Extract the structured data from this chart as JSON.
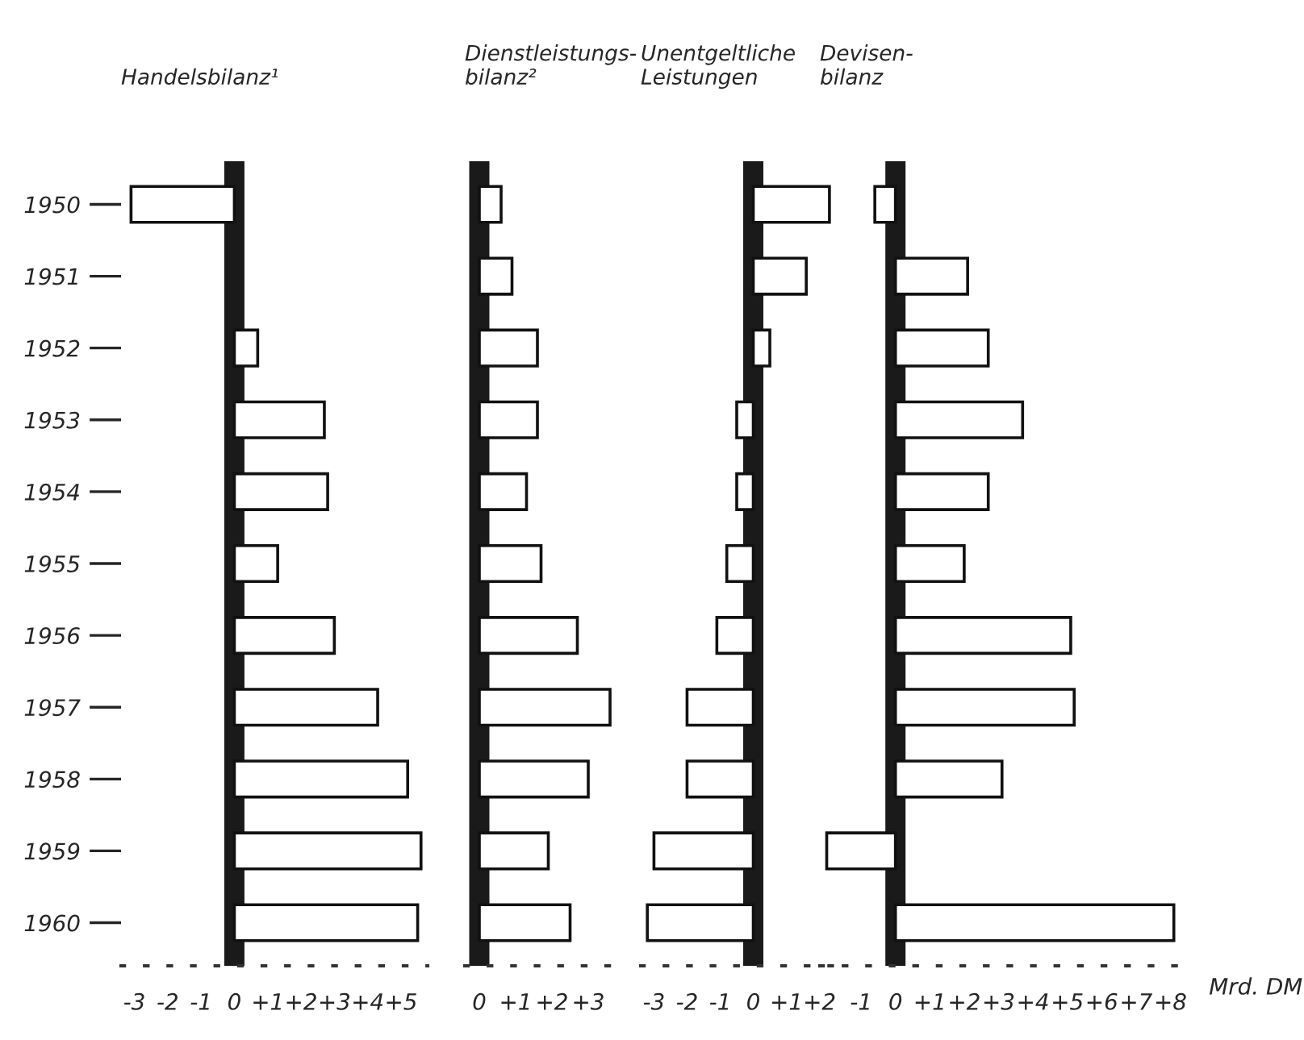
{
  "chart_data": [
    {
      "type": "bar",
      "orientation": "horizontal",
      "title": "Handelsbilanz¹",
      "categories": [
        "1950",
        "1951",
        "1952",
        "1953",
        "1954",
        "1955",
        "1956",
        "1957",
        "1958",
        "1959",
        "1960"
      ],
      "values": [
        -3.1,
        null,
        0.7,
        2.7,
        2.8,
        1.3,
        3.0,
        4.3,
        5.2,
        5.6,
        5.5
      ],
      "color": "#ffffff",
      "xlim": [
        -3.4,
        5.8
      ],
      "xticks": [
        {
          "value": -3,
          "label": "-3"
        },
        {
          "value": -2,
          "label": "-2"
        },
        {
          "value": -1,
          "label": "-1"
        },
        0,
        {
          "value": 1,
          "label": "+1"
        },
        {
          "value": 2,
          "label": "+2"
        },
        {
          "value": 3,
          "label": "+3"
        },
        {
          "value": 4,
          "label": "+4"
        },
        {
          "value": 5,
          "label": "+5"
        }
      ],
      "ref_lines": [
        {
          "axis": "x",
          "value": 0,
          "color": "#1a1a1a"
        }
      ],
      "grid": false,
      "legend": false
    },
    {
      "type": "bar",
      "orientation": "horizontal",
      "title": "Dienstleistungs-\nbilanz²",
      "categories": [
        "1950",
        "1951",
        "1952",
        "1953",
        "1954",
        "1955",
        "1956",
        "1957",
        "1958",
        "1959",
        "1960"
      ],
      "values": [
        0.6,
        0.9,
        1.6,
        1.6,
        1.3,
        1.7,
        2.7,
        3.6,
        3.0,
        1.9,
        2.5
      ],
      "color": "#ffffff",
      "xlim": [
        -0.4,
        4.0
      ],
      "xticks": [
        0,
        {
          "value": 1,
          "label": "+1"
        },
        {
          "value": 2,
          "label": "+2"
        },
        {
          "value": 3,
          "label": "+3"
        }
      ],
      "ref_lines": [
        {
          "axis": "x",
          "value": 0,
          "color": "#1a1a1a"
        }
      ],
      "tick_labels": "x",
      "grid": false,
      "legend": false
    },
    {
      "type": "bar",
      "orientation": "horizontal",
      "title": "Unentgeltliche\nLeistungen",
      "categories": [
        "1950",
        "1951",
        "1952",
        "1953",
        "1954",
        "1955",
        "1956",
        "1957",
        "1958",
        "1959",
        "1960"
      ],
      "values": [
        2.3,
        1.6,
        0.5,
        -0.5,
        -0.5,
        -0.8,
        -1.1,
        -2.0,
        -2.0,
        -3.0,
        -3.2
      ],
      "color": "#ffffff",
      "xlim": [
        -3.4,
        2.4
      ],
      "xticks": [
        {
          "value": -3,
          "label": "-3"
        },
        {
          "value": -2,
          "label": "-2"
        },
        {
          "value": -1,
          "label": "-1"
        },
        0,
        {
          "value": 1,
          "label": "+1"
        },
        {
          "value": 2,
          "label": "+2"
        }
      ],
      "ref_lines": [
        {
          "axis": "x",
          "value": 0,
          "color": "#1a1a1a"
        }
      ],
      "tick_labels": "x",
      "grid": false,
      "legend": false
    },
    {
      "type": "bar",
      "orientation": "horizontal",
      "title": "Devisen-\nbilanz",
      "categories": [
        "1950",
        "1951",
        "1952",
        "1953",
        "1954",
        "1955",
        "1956",
        "1957",
        "1958",
        "1959",
        "1960"
      ],
      "values": [
        -0.6,
        2.1,
        2.7,
        3.7,
        2.7,
        2.0,
        5.1,
        5.2,
        3.1,
        -2.0,
        8.1
      ],
      "color": "#ffffff",
      "xlim": [
        -2.2,
        8.6
      ],
      "xticks": [
        {
          "value": -1,
          "label": "-1"
        },
        0,
        {
          "value": 1,
          "label": "+1"
        },
        {
          "value": 2,
          "label": "+2"
        },
        {
          "value": 3,
          "label": "+3"
        },
        {
          "value": 4,
          "label": "+4"
        },
        {
          "value": 5,
          "label": "+5"
        },
        {
          "value": 6,
          "label": "+6"
        },
        {
          "value": 7,
          "label": "+7"
        },
        {
          "value": 8,
          "label": "+8"
        }
      ],
      "ref_lines": [
        {
          "axis": "x",
          "value": 0,
          "color": "#1a1a1a"
        }
      ],
      "tick_labels": "x",
      "grid": false,
      "legend": false,
      "annotations": [
        "Mrd. DM"
      ]
    }
  ]
}
